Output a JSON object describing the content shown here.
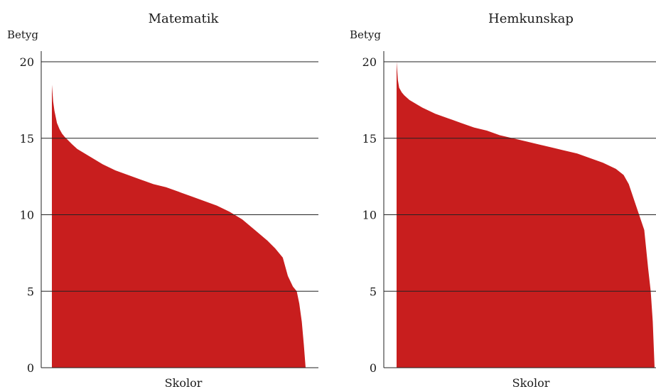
{
  "chart_data": [
    {
      "type": "area",
      "title": "Matematik",
      "ylabel": "Betyg",
      "xlabel": "Skolor",
      "ylim": [
        0,
        20
      ],
      "yticks": [
        0,
        5,
        10,
        15,
        20
      ],
      "grid": true,
      "color": "#c81e1e",
      "x": [
        0,
        0.5,
        1,
        2,
        3,
        4,
        5,
        8,
        10,
        15,
        20,
        25,
        30,
        35,
        40,
        45,
        50,
        55,
        60,
        65,
        70,
        75,
        80,
        85,
        88,
        91,
        93,
        95,
        96.5,
        97.5,
        98.5,
        99.3,
        100
      ],
      "values": [
        18.5,
        17.4,
        16.8,
        16.0,
        15.6,
        15.3,
        15.1,
        14.6,
        14.3,
        13.8,
        13.3,
        12.9,
        12.6,
        12.3,
        12.0,
        11.8,
        11.5,
        11.2,
        10.9,
        10.6,
        10.2,
        9.7,
        9.0,
        8.3,
        7.8,
        7.2,
        6.0,
        5.3,
        5.0,
        4.2,
        3.0,
        1.5,
        0.0
      ]
    },
    {
      "type": "area",
      "title": "Hemkunskap",
      "ylabel": "Betyg",
      "xlabel": "Skolor",
      "ylim": [
        0,
        20
      ],
      "yticks": [
        0,
        5,
        10,
        15,
        20
      ],
      "grid": true,
      "color": "#c81e1e",
      "x": [
        0,
        0.5,
        1,
        2,
        3,
        5,
        8,
        10,
        15,
        20,
        25,
        30,
        35,
        40,
        45,
        50,
        55,
        60,
        65,
        70,
        75,
        80,
        85,
        88,
        90,
        92,
        94,
        96,
        97.5,
        98.5,
        99.3,
        100
      ],
      "values": [
        20.0,
        18.8,
        18.3,
        18.0,
        17.8,
        17.5,
        17.2,
        17.0,
        16.6,
        16.3,
        16.0,
        15.7,
        15.5,
        15.2,
        15.0,
        14.8,
        14.6,
        14.4,
        14.2,
        14.0,
        13.7,
        13.4,
        13.0,
        12.6,
        12.0,
        11.0,
        10.0,
        9.0,
        6.5,
        5.0,
        3.0,
        0.0
      ]
    }
  ]
}
